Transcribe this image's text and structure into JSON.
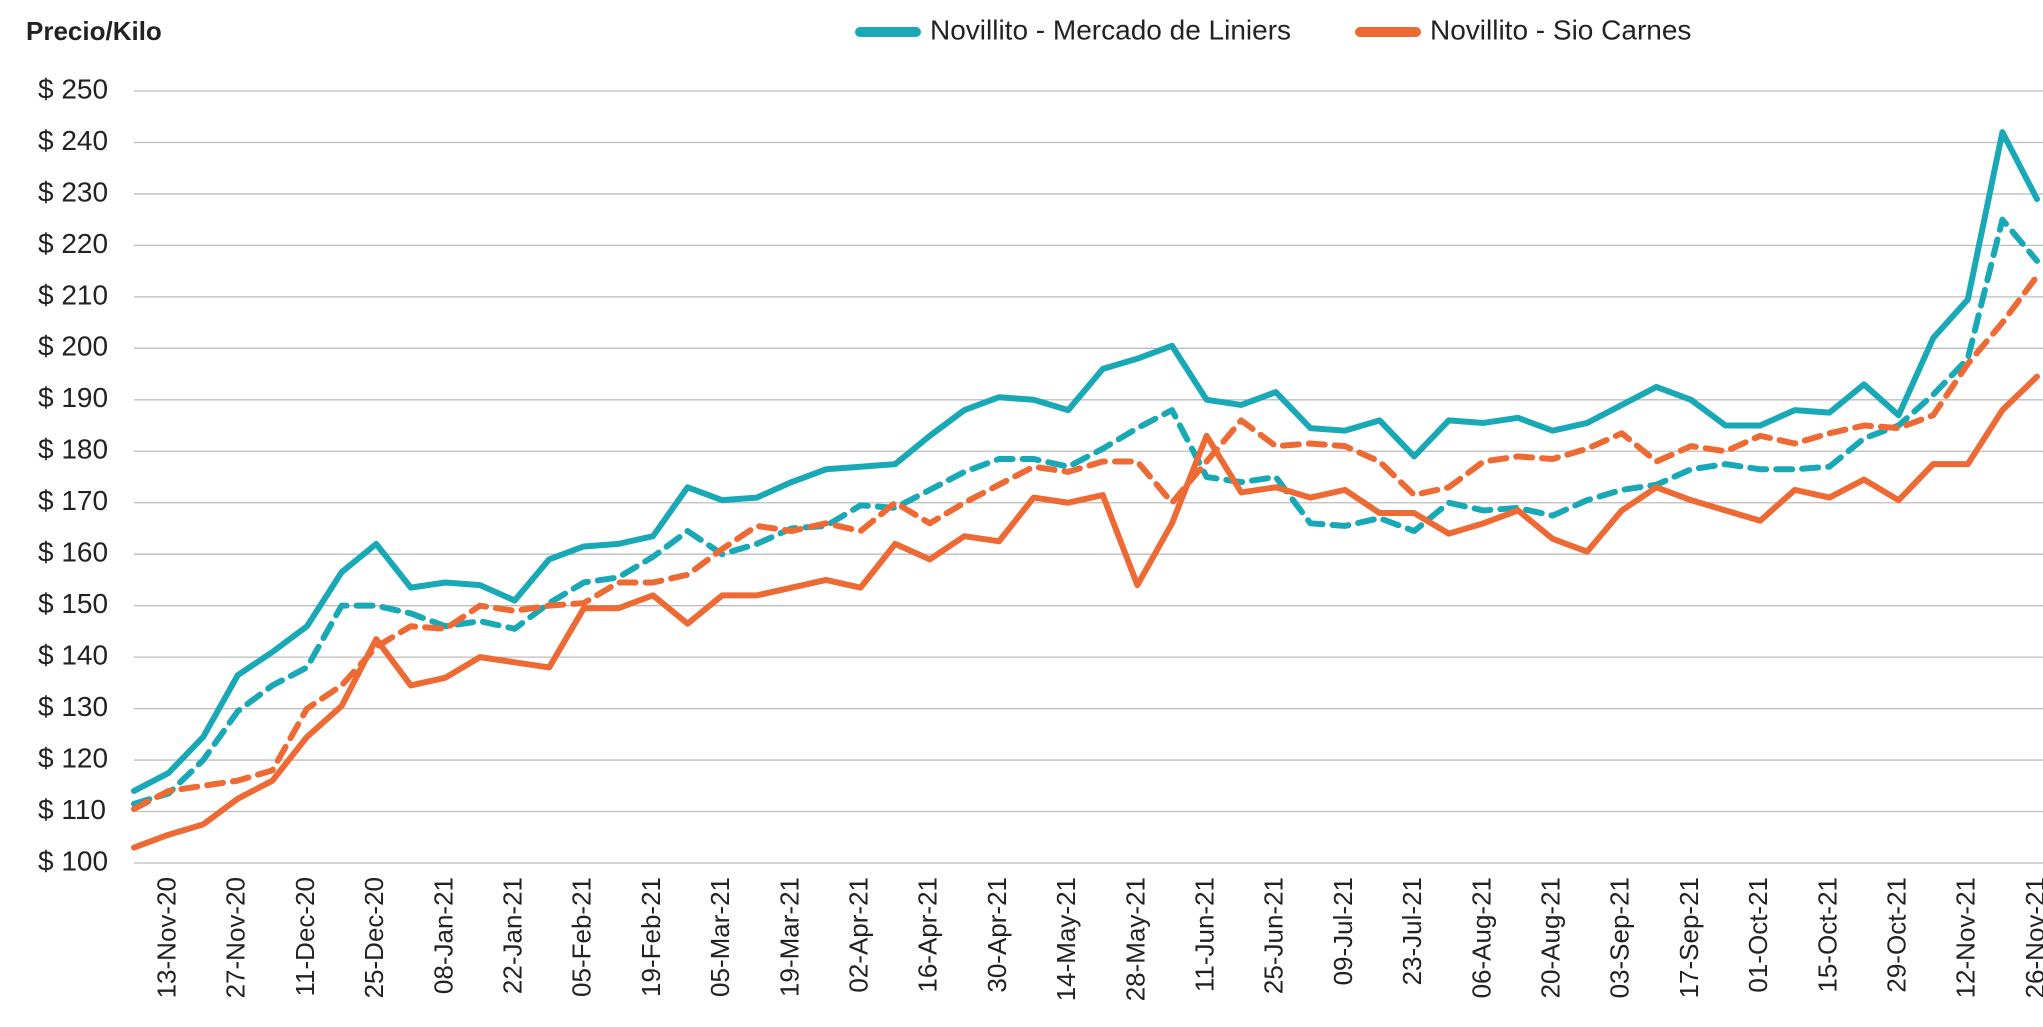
{
  "chart_data": {
    "type": "line",
    "y_label": "Precio/Kilo",
    "categories": [
      null,
      "13-Nov-20",
      null,
      "27-Nov-20",
      null,
      "11-Dec-20",
      null,
      "25-Dec-20",
      null,
      "08-Jan-21",
      null,
      "22-Jan-21",
      null,
      "05-Feb-21",
      null,
      "19-Feb-21",
      null,
      "05-Mar-21",
      null,
      "19-Mar-21",
      null,
      "02-Apr-21",
      null,
      "16-Apr-21",
      null,
      "30-Apr-21",
      null,
      "14-May-21",
      null,
      "28-May-21",
      null,
      "11-Jun-21",
      null,
      "25-Jun-21",
      null,
      "09-Jul-21",
      null,
      "23-Jul-21",
      null,
      "06-Aug-21",
      null,
      "20-Aug-21",
      null,
      "03-Sep-21",
      null,
      "17-Sep-21",
      null,
      "01-Oct-21",
      null,
      "15-Oct-21",
      null,
      "29-Oct-21",
      null,
      "12-Nov-21",
      null,
      "26-Nov-21"
    ],
    "series": [
      {
        "name": "Novillito - Mercado de Liniers",
        "color": "#19a9b6",
        "dashed": false,
        "values": [
          114,
          117.5,
          124.5,
          136.5,
          141,
          146,
          156.5,
          162,
          153.5,
          154.5,
          154,
          151,
          159,
          161.5,
          162,
          163.5,
          173,
          170.5,
          171,
          174,
          176.5,
          177,
          177.5,
          183,
          188,
          190.5,
          190,
          188,
          196,
          198,
          200.5,
          190,
          189,
          191.5,
          184.5,
          184,
          186,
          179,
          186,
          185.5,
          186.5,
          184,
          185.5,
          189,
          192.5,
          190,
          185,
          185,
          188,
          187.5,
          193,
          187,
          202,
          209.5,
          242,
          229
        ]
      },
      {
        "name": "Novillito - Sio Carnes",
        "color": "#ee6a34",
        "dashed": false,
        "values": [
          103,
          105.5,
          107.5,
          112.5,
          116,
          124.5,
          130.5,
          143.5,
          134.5,
          136,
          140,
          139,
          138,
          149.5,
          149.5,
          152,
          146.5,
          152,
          152,
          153.5,
          155,
          153.5,
          162,
          159,
          163.5,
          162.5,
          171,
          170,
          171.5,
          154,
          166,
          183,
          172,
          173,
          171,
          172.5,
          168,
          168,
          164,
          166,
          168.5,
          163,
          160.5,
          168.5,
          173,
          170.5,
          168.5,
          166.5,
          172.5,
          171,
          174.5,
          170.5,
          177.5,
          177.5,
          188,
          194.5
        ]
      },
      {
        "color": "#19a9b6",
        "dashed": true,
        "values": [
          111.5,
          113.5,
          120,
          129.5,
          134.5,
          138,
          150,
          150,
          148.5,
          146,
          147,
          145.5,
          150.5,
          154.5,
          155.5,
          159.5,
          164.5,
          160,
          162,
          165,
          165.5,
          169.5,
          169,
          172.5,
          176,
          178.5,
          178.5,
          177,
          180.5,
          184.5,
          188,
          175,
          174,
          175,
          166,
          165.5,
          167,
          164.5,
          170,
          168.5,
          169,
          167.5,
          170.5,
          172.5,
          173.5,
          176.5,
          177.5,
          176.5,
          176.5,
          177,
          182.5,
          185,
          191,
          198,
          225,
          217
        ]
      },
      {
        "color": "#ee6a34",
        "dashed": true,
        "values": [
          110.5,
          114,
          115,
          116,
          118,
          130,
          134.5,
          142,
          146,
          145.5,
          150,
          149,
          150,
          150.5,
          154.5,
          154.5,
          156,
          161,
          165.5,
          164.5,
          166,
          164.5,
          170,
          166,
          170,
          173.5,
          177,
          176,
          178,
          178,
          170,
          178,
          186,
          181,
          181.5,
          181,
          178,
          171.5,
          173,
          178,
          179,
          178.5,
          180.5,
          183.5,
          178,
          181,
          180,
          183,
          181.5,
          183.5,
          185,
          184.5,
          187,
          197,
          205,
          214
        ]
      }
    ],
    "ylim": [
      100,
      250
    ],
    "yticks": [
      {
        "value": 100,
        "label": "$ 100"
      },
      {
        "value": 110,
        "label": "$ 110"
      },
      {
        "value": 120,
        "label": "$ 120"
      },
      {
        "value": 130,
        "label": "$ 130"
      },
      {
        "value": 140,
        "label": "$ 140"
      },
      {
        "value": 150,
        "label": "$ 150"
      },
      {
        "value": 160,
        "label": "$ 160"
      },
      {
        "value": 170,
        "label": "$ 170"
      },
      {
        "value": 180,
        "label": "$ 180"
      },
      {
        "value": 190,
        "label": "$ 190"
      },
      {
        "value": 200,
        "label": "$ 200"
      },
      {
        "value": 210,
        "label": "$ 210"
      },
      {
        "value": 220,
        "label": "$ 220"
      },
      {
        "value": 230,
        "label": "$ 230"
      },
      {
        "value": 240,
        "label": "$ 240"
      },
      {
        "value": 250,
        "label": "$ 250"
      }
    ],
    "grid": true,
    "legend": "top"
  }
}
